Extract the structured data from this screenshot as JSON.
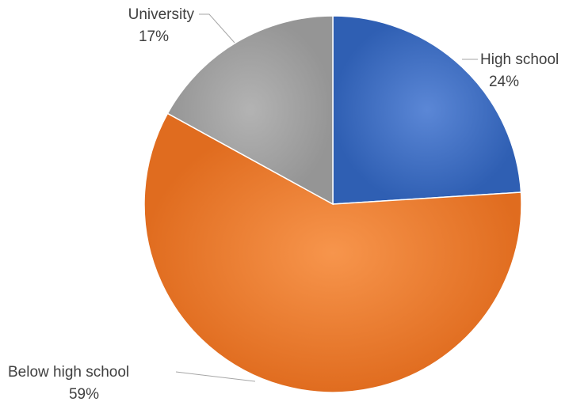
{
  "chart_data": {
    "type": "pie",
    "slices": [
      {
        "label": "High school",
        "value": 24,
        "value_label": "24%",
        "color": "#4472c4"
      },
      {
        "label": "Below high school",
        "value": 59,
        "value_label": "59%",
        "color": "#ed7d31"
      },
      {
        "label": "University",
        "value": 17,
        "value_label": "17%",
        "color": "#a5a5a5"
      }
    ],
    "start_angle_deg": 0,
    "direction": "clockwise",
    "legend": "none",
    "data_labels": "outside with leader lines"
  }
}
